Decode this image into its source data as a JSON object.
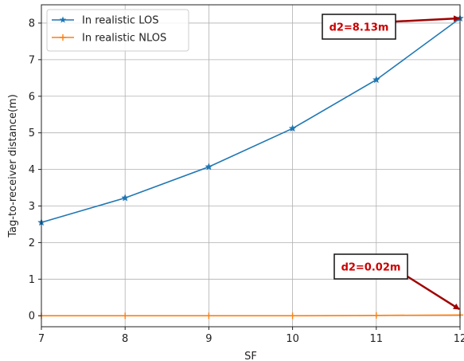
{
  "chart_data": {
    "type": "line",
    "title": "",
    "xlabel": "SF",
    "ylabel": "Tag-to-receiver distance(m)",
    "x": [
      7,
      8,
      9,
      10,
      11,
      12
    ],
    "xlim": [
      7,
      12
    ],
    "ylim": [
      -0.3,
      8.5
    ],
    "xticks": [
      "7",
      "8",
      "9",
      "10",
      "11",
      "12"
    ],
    "yticks": [
      "0",
      "1",
      "2",
      "3",
      "4",
      "5",
      "6",
      "7",
      "8"
    ],
    "grid": true,
    "legend_position": "top-left",
    "series": [
      {
        "name": "In realistic LOS",
        "values": [
          2.55,
          3.22,
          4.07,
          5.12,
          6.45,
          8.13
        ],
        "color": "#1f77b4",
        "marker": "star"
      },
      {
        "name": "In realistic NLOS",
        "values": [
          0.0,
          0.0,
          0.0,
          0.0,
          0.01,
          0.02
        ],
        "color": "#ff7f0e",
        "marker": "plus"
      }
    ],
    "annotations": [
      {
        "text": "d2=8.13m",
        "target_x": 12,
        "target_y": 8.13,
        "color": "#a00000"
      },
      {
        "text": "d2=0.02m",
        "target_x": 12,
        "target_y": 0.18,
        "color": "#a00000"
      }
    ]
  }
}
